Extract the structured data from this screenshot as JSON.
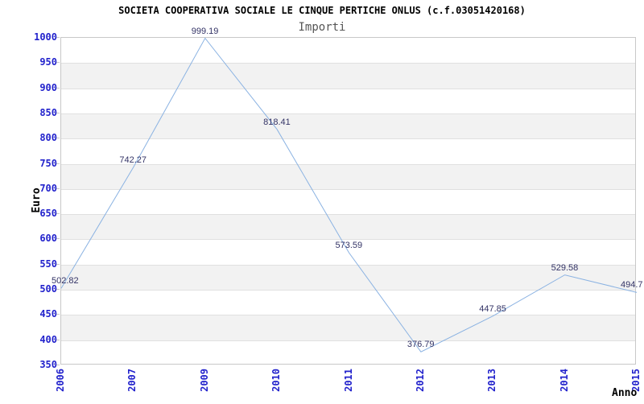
{
  "chart_data": {
    "type": "line",
    "title": "SOCIETA COOPERATIVA SOCIALE LE CINQUE PERTICHE ONLUS (c.f.03051420168)",
    "subtitle": "Importi",
    "xlabel": "Anno",
    "ylabel": "Euro",
    "categories": [
      "2006",
      "2007",
      "2009",
      "2010",
      "2011",
      "2012",
      "2013",
      "2014",
      "2015"
    ],
    "values": [
      502.82,
      742.27,
      999.19,
      818.41,
      573.59,
      376.79,
      447.85,
      529.58,
      494.7
    ],
    "point_labels": [
      "502.82",
      "742.27",
      "999.19",
      "818.41",
      "573.59",
      "376.79",
      "447.85",
      "529.58",
      "494.7"
    ],
    "ylim": [
      350,
      1000
    ],
    "ytick_step": 50,
    "legend": "none",
    "grid": "horizontal",
    "background_bands": "alternating gray bands between gridlines (gray on 400-450, 500-550, 600-650, 700-750, 800-850, 900-950)",
    "colors": {
      "line": "#8ab2e2",
      "tick_label": "#2222cc",
      "point_label": "#333366",
      "band": "#f2f2f2",
      "gridline": "#e0e0e0",
      "plot_border": "#c8c8c8",
      "title": "#000000",
      "subtitle": "#555555",
      "axis_title": "#000000"
    }
  }
}
